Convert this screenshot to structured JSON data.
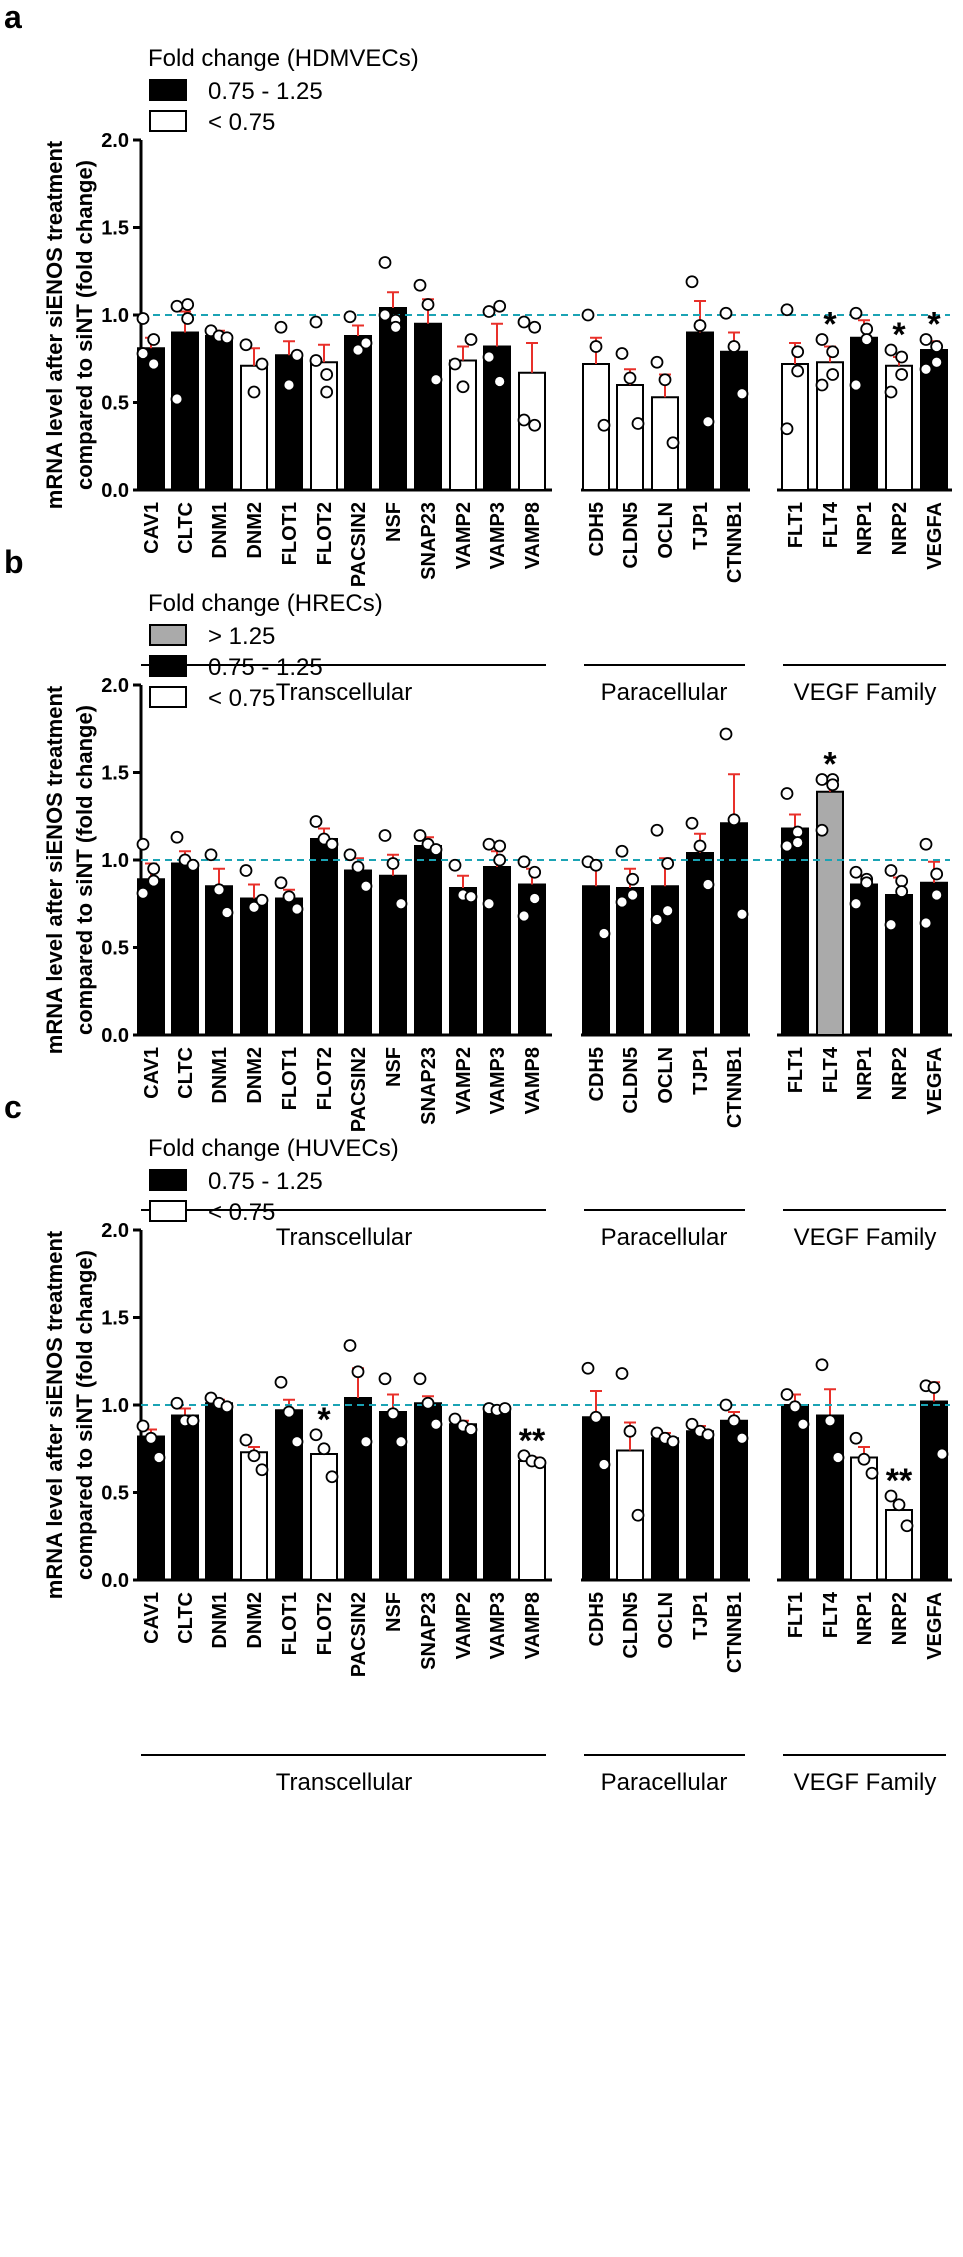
{
  "chart_data": [
    {
      "type": "bar",
      "panel_letter": "a",
      "legend_title": "Fold change (HDMVECs)",
      "legend": [
        {
          "label": "0.75 - 1.25",
          "fill": "#000000"
        },
        {
          "label": "< 0.75",
          "fill": "#ffffff"
        }
      ],
      "ylabel_lines": [
        "mRNA level after siENOS treatment",
        "compared to siNT (fold change)"
      ],
      "ylim": [
        0,
        2.0
      ],
      "yticks": [
        "0.0",
        "0.5",
        "1.0",
        "1.5",
        "2.0"
      ],
      "reference_line": 1.0,
      "groups": [
        {
          "label": "Transcellular",
          "categories": [
            "CAV1",
            "CLTC",
            "DNM1",
            "DNM2",
            "FLOT1",
            "FLOT2",
            "PACSIN2",
            "NSF",
            "SNAP23",
            "VAMP2",
            "VAMP3",
            "VAMP8"
          ]
        },
        {
          "label": "Paracellular",
          "categories": [
            "CDH5",
            "CLDN5",
            "OCLN",
            "TJP1",
            "CTNNB1"
          ]
        },
        {
          "label": "VEGF Family",
          "categories": [
            "FLT1",
            "FLT4",
            "NRP1",
            "NRP2",
            "VEGFA"
          ]
        }
      ],
      "bars": [
        {
          "gene": "CAV1",
          "value": 0.81,
          "error": 0.06,
          "class": "black",
          "points": [
            0.98,
            0.72,
            0.86,
            0.78
          ],
          "sig": ""
        },
        {
          "gene": "CLTC",
          "value": 0.9,
          "error": 0.12,
          "class": "black",
          "points": [
            1.05,
            0.98,
            1.06,
            0.52
          ],
          "sig": ""
        },
        {
          "gene": "DNM1",
          "value": 0.88,
          "error": 0.03,
          "class": "black",
          "points": [
            0.91,
            0.88,
            0.87
          ],
          "sig": ""
        },
        {
          "gene": "DNM2",
          "value": 0.71,
          "error": 0.1,
          "class": "white",
          "points": [
            0.83,
            0.56,
            0.72
          ],
          "sig": ""
        },
        {
          "gene": "FLOT1",
          "value": 0.77,
          "error": 0.08,
          "class": "black",
          "points": [
            0.93,
            0.6,
            0.77
          ],
          "sig": ""
        },
        {
          "gene": "FLOT2",
          "value": 0.73,
          "error": 0.1,
          "class": "white",
          "points": [
            0.96,
            0.66,
            0.56,
            0.74
          ],
          "sig": ""
        },
        {
          "gene": "PACSIN2",
          "value": 0.88,
          "error": 0.06,
          "class": "black",
          "points": [
            0.99,
            0.8,
            0.84
          ],
          "sig": ""
        },
        {
          "gene": "NSF",
          "value": 1.04,
          "error": 0.09,
          "class": "black",
          "points": [
            1.3,
            0.97,
            0.93,
            1.0
          ],
          "sig": ""
        },
        {
          "gene": "SNAP23",
          "value": 0.95,
          "error": 0.14,
          "class": "black",
          "points": [
            1.17,
            1.06,
            0.63
          ],
          "sig": ""
        },
        {
          "gene": "VAMP2",
          "value": 0.74,
          "error": 0.08,
          "class": "white",
          "points": [
            0.72,
            0.59,
            0.86
          ],
          "sig": ""
        },
        {
          "gene": "VAMP3",
          "value": 0.82,
          "error": 0.13,
          "class": "black",
          "points": [
            1.02,
            1.05,
            0.62,
            0.76
          ],
          "sig": ""
        },
        {
          "gene": "VAMP8",
          "value": 0.67,
          "error": 0.17,
          "class": "white",
          "points": [
            0.96,
            0.93,
            0.37,
            0.4
          ],
          "sig": ""
        },
        {
          "gene": "CDH5",
          "value": 0.72,
          "error": 0.15,
          "class": "white",
          "points": [
            1.0,
            0.82,
            0.37
          ],
          "sig": ""
        },
        {
          "gene": "CLDN5",
          "value": 0.6,
          "error": 0.09,
          "class": "white",
          "points": [
            0.78,
            0.64,
            0.38
          ],
          "sig": ""
        },
        {
          "gene": "OCLN",
          "value": 0.53,
          "error": 0.13,
          "class": "white",
          "points": [
            0.73,
            0.63,
            0.27
          ],
          "sig": ""
        },
        {
          "gene": "TJP1",
          "value": 0.9,
          "error": 0.18,
          "class": "black",
          "points": [
            1.19,
            0.94,
            0.39
          ],
          "sig": ""
        },
        {
          "gene": "CTNNB1",
          "value": 0.79,
          "error": 0.11,
          "class": "black",
          "points": [
            1.01,
            0.82,
            0.55
          ],
          "sig": ""
        },
        {
          "gene": "FLT1",
          "value": 0.72,
          "error": 0.12,
          "class": "white",
          "points": [
            1.03,
            0.79,
            0.68,
            0.35
          ],
          "sig": ""
        },
        {
          "gene": "FLT4",
          "value": 0.73,
          "error": 0.09,
          "class": "white",
          "points": [
            0.86,
            0.79,
            0.66,
            0.6
          ],
          "sig": "*"
        },
        {
          "gene": "NRP1",
          "value": 0.87,
          "error": 0.1,
          "class": "black",
          "points": [
            1.01,
            0.92,
            0.86,
            0.6
          ],
          "sig": ""
        },
        {
          "gene": "NRP2",
          "value": 0.71,
          "error": 0.05,
          "class": "white",
          "points": [
            0.8,
            0.76,
            0.66,
            0.56
          ],
          "sig": "*"
        },
        {
          "gene": "VEGFA",
          "value": 0.8,
          "error": 0.05,
          "class": "black",
          "points": [
            0.86,
            0.82,
            0.73,
            0.69
          ],
          "sig": "*"
        }
      ]
    },
    {
      "type": "bar",
      "panel_letter": "b",
      "legend_title": "Fold change (HRECs)",
      "legend": [
        {
          "label": "> 1.25",
          "fill": "#aaaaaa"
        },
        {
          "label": "0.75 - 1.25",
          "fill": "#000000"
        },
        {
          "label": "< 0.75",
          "fill": "#ffffff"
        }
      ],
      "ylabel_lines": [
        "mRNA level after siENOS treatment",
        "compared to siNT (fold change)"
      ],
      "ylim": [
        0,
        2.0
      ],
      "yticks": [
        "0.0",
        "0.5",
        "1.0",
        "1.5",
        "2.0"
      ],
      "reference_line": 1.0,
      "groups": [
        {
          "label": "Transcellular",
          "categories": [
            "CAV1",
            "CLTC",
            "DNM1",
            "DNM2",
            "FLOT1",
            "FLOT2",
            "PACSIN2",
            "NSF",
            "SNAP23",
            "VAMP2",
            "VAMP3",
            "VAMP8"
          ]
        },
        {
          "label": "Paracellular",
          "categories": [
            "CDH5",
            "CLDN5",
            "OCLN",
            "TJP1",
            "CTNNB1"
          ]
        },
        {
          "label": "VEGF Family",
          "categories": [
            "FLT1",
            "FLT4",
            "NRP1",
            "NRP2",
            "VEGFA"
          ]
        }
      ],
      "bars": [
        {
          "gene": "CAV1",
          "value": 0.89,
          "error": 0.09,
          "class": "black",
          "points": [
            1.09,
            0.95,
            0.88,
            0.81
          ],
          "sig": ""
        },
        {
          "gene": "CLTC",
          "value": 0.98,
          "error": 0.07,
          "class": "black",
          "points": [
            1.13,
            1.0,
            0.97
          ],
          "sig": ""
        },
        {
          "gene": "DNM1",
          "value": 0.85,
          "error": 0.1,
          "class": "black",
          "points": [
            1.03,
            0.83,
            0.7
          ],
          "sig": ""
        },
        {
          "gene": "DNM2",
          "value": 0.78,
          "error": 0.08,
          "class": "black",
          "points": [
            0.94,
            0.73,
            0.77
          ],
          "sig": ""
        },
        {
          "gene": "FLOT1",
          "value": 0.78,
          "error": 0.05,
          "class": "black",
          "points": [
            0.87,
            0.79,
            0.72
          ],
          "sig": ""
        },
        {
          "gene": "FLOT2",
          "value": 1.12,
          "error": 0.06,
          "class": "black",
          "points": [
            1.22,
            1.12,
            1.09
          ],
          "sig": ""
        },
        {
          "gene": "PACSIN2",
          "value": 0.94,
          "error": 0.07,
          "class": "black",
          "points": [
            1.03,
            0.96,
            0.85
          ],
          "sig": ""
        },
        {
          "gene": "NSF",
          "value": 0.91,
          "error": 0.12,
          "class": "black",
          "points": [
            1.14,
            0.98,
            0.75
          ],
          "sig": ""
        },
        {
          "gene": "SNAP23",
          "value": 1.08,
          "error": 0.05,
          "class": "black",
          "points": [
            1.14,
            1.09,
            1.06
          ],
          "sig": ""
        },
        {
          "gene": "VAMP2",
          "value": 0.84,
          "error": 0.07,
          "class": "black",
          "points": [
            0.97,
            0.8,
            0.79
          ],
          "sig": ""
        },
        {
          "gene": "VAMP3",
          "value": 0.96,
          "error": 0.09,
          "class": "black",
          "points": [
            1.09,
            1.08,
            1.0,
            0.75
          ],
          "sig": ""
        },
        {
          "gene": "VAMP8",
          "value": 0.86,
          "error": 0.09,
          "class": "black",
          "points": [
            0.99,
            0.93,
            0.78,
            0.68
          ],
          "sig": ""
        },
        {
          "gene": "CDH5",
          "value": 0.85,
          "error": 0.15,
          "class": "black",
          "points": [
            0.99,
            0.97,
            0.58
          ],
          "sig": ""
        },
        {
          "gene": "CLDN5",
          "value": 0.84,
          "error": 0.11,
          "class": "black",
          "points": [
            1.05,
            0.89,
            0.8,
            0.76
          ],
          "sig": ""
        },
        {
          "gene": "OCLN",
          "value": 0.85,
          "error": 0.16,
          "class": "black",
          "points": [
            1.17,
            0.98,
            0.71,
            0.66
          ],
          "sig": ""
        },
        {
          "gene": "TJP1",
          "value": 1.04,
          "error": 0.11,
          "class": "black",
          "points": [
            1.21,
            1.08,
            0.86
          ],
          "sig": ""
        },
        {
          "gene": "CTNNB1",
          "value": 1.21,
          "error": 0.28,
          "class": "black",
          "points": [
            1.72,
            1.23,
            0.69
          ],
          "sig": ""
        },
        {
          "gene": "FLT1",
          "value": 1.18,
          "error": 0.08,
          "class": "black",
          "points": [
            1.38,
            1.16,
            1.1,
            1.08
          ],
          "sig": ""
        },
        {
          "gene": "FLT4",
          "value": 1.39,
          "error": 0.06,
          "class": "gray",
          "points": [
            1.46,
            1.46,
            1.43,
            1.17
          ],
          "sig": "*"
        },
        {
          "gene": "NRP1",
          "value": 0.86,
          "error": 0.05,
          "class": "black",
          "points": [
            0.93,
            0.89,
            0.87,
            0.75
          ],
          "sig": ""
        },
        {
          "gene": "NRP2",
          "value": 0.8,
          "error": 0.1,
          "class": "black",
          "points": [
            0.94,
            0.88,
            0.82,
            0.63
          ],
          "sig": ""
        },
        {
          "gene": "VEGFA",
          "value": 0.87,
          "error": 0.12,
          "class": "black",
          "points": [
            1.09,
            0.92,
            0.8,
            0.64
          ],
          "sig": ""
        }
      ]
    },
    {
      "type": "bar",
      "panel_letter": "c",
      "legend_title": "Fold change (HUVECs)",
      "legend": [
        {
          "label": "0.75 - 1.25",
          "fill": "#000000"
        },
        {
          "label": "< 0.75",
          "fill": "#ffffff"
        }
      ],
      "ylabel_lines": [
        "mRNA level after siENOS treatment",
        "compared to siNT (fold change)"
      ],
      "ylim": [
        0,
        2.0
      ],
      "yticks": [
        "0.0",
        "0.5",
        "1.0",
        "1.5",
        "2.0"
      ],
      "reference_line": 1.0,
      "groups": [
        {
          "label": "Transcellular",
          "categories": [
            "CAV1",
            "CLTC",
            "DNM1",
            "DNM2",
            "FLOT1",
            "FLOT2",
            "PACSIN2",
            "NSF",
            "SNAP23",
            "VAMP2",
            "VAMP3",
            "VAMP8"
          ]
        },
        {
          "label": "Paracellular",
          "categories": [
            "CDH5",
            "CLDN5",
            "OCLN",
            "TJP1",
            "CTNNB1"
          ]
        },
        {
          "label": "VEGF Family",
          "categories": [
            "FLT1",
            "FLT4",
            "NRP1",
            "NRP2",
            "VEGFA"
          ]
        }
      ],
      "bars": [
        {
          "gene": "CAV1",
          "value": 0.82,
          "error": 0.04,
          "class": "black",
          "points": [
            0.88,
            0.81,
            0.7
          ],
          "sig": ""
        },
        {
          "gene": "CLTC",
          "value": 0.94,
          "error": 0.04,
          "class": "black",
          "points": [
            1.01,
            0.91,
            0.91
          ],
          "sig": ""
        },
        {
          "gene": "DNM1",
          "value": 1.01,
          "error": 0.02,
          "class": "black",
          "points": [
            1.04,
            1.01,
            0.99
          ],
          "sig": ""
        },
        {
          "gene": "DNM2",
          "value": 0.73,
          "error": 0.03,
          "class": "white",
          "points": [
            0.8,
            0.71,
            0.63
          ],
          "sig": ""
        },
        {
          "gene": "FLOT1",
          "value": 0.97,
          "error": 0.06,
          "class": "black",
          "points": [
            1.13,
            0.96,
            0.79
          ],
          "sig": ""
        },
        {
          "gene": "FLOT2",
          "value": 0.72,
          "error": 0.04,
          "class": "white",
          "points": [
            0.83,
            0.75,
            0.59
          ],
          "sig": "*"
        },
        {
          "gene": "PACSIN2",
          "value": 1.04,
          "error": 0.17,
          "class": "black",
          "points": [
            1.34,
            1.19,
            0.79
          ],
          "sig": ""
        },
        {
          "gene": "NSF",
          "value": 0.96,
          "error": 0.1,
          "class": "black",
          "points": [
            1.15,
            0.95,
            0.79
          ],
          "sig": ""
        },
        {
          "gene": "SNAP23",
          "value": 1.01,
          "error": 0.04,
          "class": "black",
          "points": [
            1.15,
            1.01,
            0.89
          ],
          "sig": ""
        },
        {
          "gene": "VAMP2",
          "value": 0.89,
          "error": 0.02,
          "class": "black",
          "points": [
            0.92,
            0.88,
            0.86
          ],
          "sig": ""
        },
        {
          "gene": "VAMP3",
          "value": 0.96,
          "error": 0.03,
          "class": "black",
          "points": [
            0.98,
            0.97,
            0.98
          ],
          "sig": ""
        },
        {
          "gene": "VAMP8",
          "value": 0.68,
          "error": 0.02,
          "class": "white",
          "points": [
            0.71,
            0.68,
            0.67
          ],
          "sig": "**"
        },
        {
          "gene": "CDH5",
          "value": 0.93,
          "error": 0.15,
          "class": "black",
          "points": [
            1.21,
            0.93,
            0.66
          ],
          "sig": ""
        },
        {
          "gene": "CLDN5",
          "value": 0.74,
          "error": 0.16,
          "class": "white",
          "points": [
            1.18,
            0.85,
            0.37
          ],
          "sig": ""
        },
        {
          "gene": "OCLN",
          "value": 0.81,
          "error": 0.03,
          "class": "black",
          "points": [
            0.84,
            0.81,
            0.79
          ],
          "sig": ""
        },
        {
          "gene": "TJP1",
          "value": 0.85,
          "error": 0.03,
          "class": "black",
          "points": [
            0.89,
            0.85,
            0.83
          ],
          "sig": ""
        },
        {
          "gene": "CTNNB1",
          "value": 0.91,
          "error": 0.05,
          "class": "black",
          "points": [
            1.0,
            0.91,
            0.81
          ],
          "sig": ""
        },
        {
          "gene": "FLT1",
          "value": 1.0,
          "error": 0.06,
          "class": "black",
          "points": [
            1.06,
            0.99,
            0.89
          ],
          "sig": ""
        },
        {
          "gene": "FLT4",
          "value": 0.94,
          "error": 0.15,
          "class": "black",
          "points": [
            1.23,
            0.91,
            0.7
          ],
          "sig": ""
        },
        {
          "gene": "NRP1",
          "value": 0.7,
          "error": 0.06,
          "class": "white",
          "points": [
            0.81,
            0.69,
            0.61
          ],
          "sig": ""
        },
        {
          "gene": "NRP2",
          "value": 0.4,
          "error": 0.04,
          "class": "white",
          "points": [
            0.48,
            0.43,
            0.31
          ],
          "sig": "**"
        },
        {
          "gene": "VEGFA",
          "value": 1.02,
          "error": 0.11,
          "class": "black",
          "points": [
            1.11,
            1.1,
            0.72
          ],
          "sig": ""
        }
      ]
    }
  ]
}
